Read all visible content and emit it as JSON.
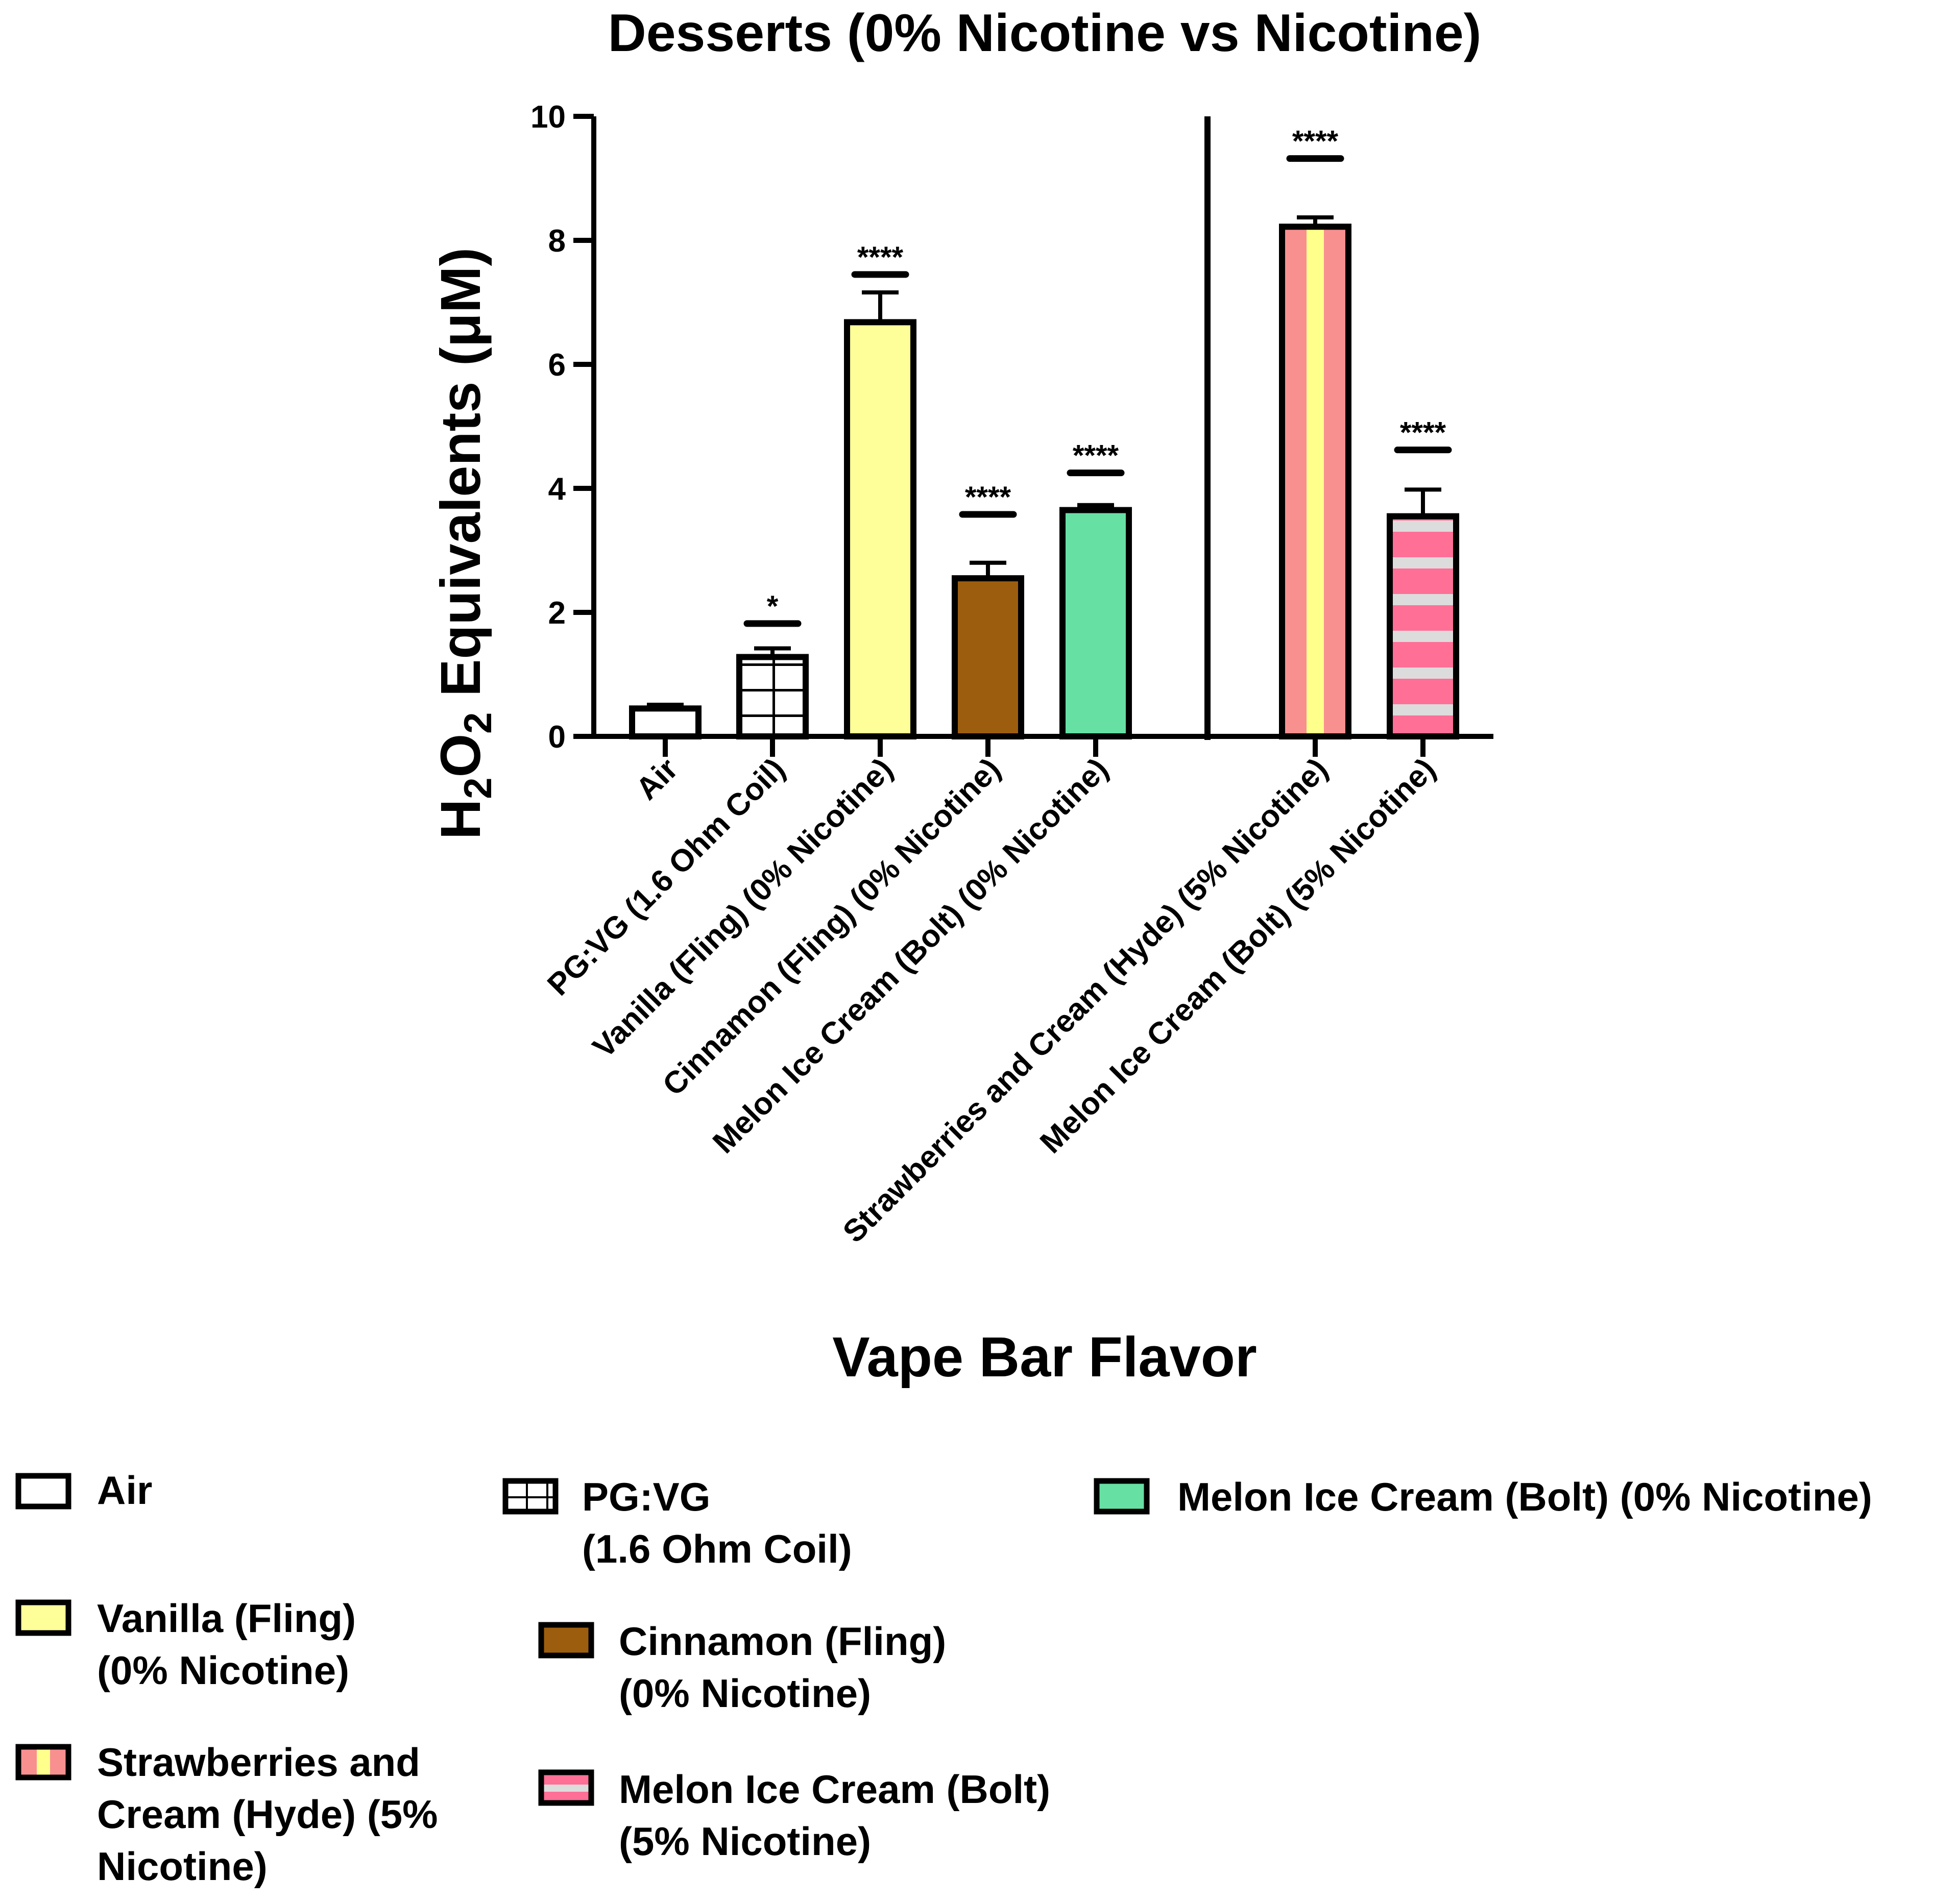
{
  "chart_data": {
    "type": "bar",
    "title": "Desserts (0% Nicotine vs Nicotine)",
    "xlabel": "Vape Bar Flavor",
    "ylabel_parts": [
      "H",
      "2",
      "O",
      "2",
      " Equivalents (μM)"
    ],
    "ylim": [
      0,
      10
    ],
    "yticks": [
      "0",
      "2",
      "4",
      "6",
      "8",
      "10"
    ],
    "categories": [
      "Air",
      "PG:VG (1.6 Ohm Coil)",
      "Vanilla (Fling) (0% Nicotine)",
      "Cinnamon (Fling) (0% Nicotine)",
      "Melon Ice Cream (Bolt) (0% Nicotine)",
      "Strawberries and Cream (Hyde) (5% Nicotine)",
      "Melon Ice Cream (Bolt) (5% Nicotine)"
    ],
    "values": [
      0.45,
      1.28,
      6.68,
      2.55,
      3.65,
      8.22,
      3.55
    ],
    "errors": [
      0.06,
      0.14,
      0.48,
      0.25,
      0.08,
      0.15,
      0.43
    ],
    "significance": [
      "",
      "*",
      "****",
      "****",
      "****",
      "****",
      "****"
    ],
    "significance_y": [
      null,
      1.82,
      7.45,
      3.58,
      4.25,
      9.32,
      4.62
    ],
    "fills": [
      "#ffffff",
      "#ffffff",
      "#ffff99",
      "#9c5e0e",
      "#66e0a3",
      "#f89090",
      "#ff6f96"
    ],
    "highlight_colors": {
      "strawberry_stripe": "#ffff8c",
      "melon_stripe": "#dcdcdc"
    },
    "legend": [
      {
        "key": "air",
        "lines": [
          "Air"
        ]
      },
      {
        "key": "pgvg",
        "lines": [
          "PG:VG",
          "(1.6 Ohm Coil)"
        ]
      },
      {
        "key": "melon0",
        "lines": [
          "Melon Ice Cream (Bolt) (0% Nicotine)"
        ]
      },
      {
        "key": "vanilla",
        "lines": [
          "Vanilla (Fling)",
          "(0% Nicotine)"
        ]
      },
      {
        "key": "cinnamon",
        "lines": [
          "Cinnamon (Fling)",
          "(0% Nicotine)"
        ]
      },
      {
        "key": "strawberry",
        "lines": [
          "Strawberries and",
          "Cream (Hyde) (5%",
          "Nicotine)"
        ]
      },
      {
        "key": "melon5",
        "lines": [
          "Melon Ice Cream (Bolt)",
          "(5% Nicotine)"
        ]
      }
    ]
  }
}
